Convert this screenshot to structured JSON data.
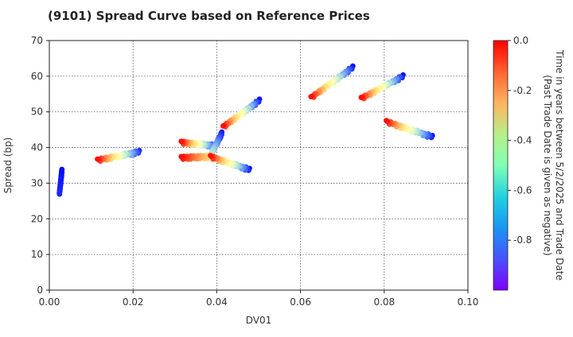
{
  "chart_data": {
    "type": "scatter",
    "title": "(9101)   Spread Curve based on Reference Prices",
    "xlabel": "DV01",
    "ylabel": "Spread (bp)",
    "xlim": [
      0.0,
      0.1
    ],
    "ylim": [
      0,
      70
    ],
    "x_ticks": [
      "0.00",
      "0.02",
      "0.04",
      "0.06",
      "0.08",
      "0.10"
    ],
    "y_ticks": [
      "0",
      "10",
      "20",
      "30",
      "40",
      "50",
      "60",
      "70"
    ],
    "grid": true,
    "colorbar": {
      "label_line1": "Time in years between 5/2/2025 and Trade Date",
      "label_line2": "(Past Trade Date is given as negative)",
      "range": [
        -1.0,
        0.0
      ],
      "ticks": [
        "0.0",
        "-0.2",
        "-0.4",
        "-0.6",
        "-0.8"
      ],
      "colormap": "rainbow"
    },
    "clusters": [
      {
        "x_start": 0.0024,
        "y_start": 27.0,
        "x_end": 0.003,
        "y_end": 33.5,
        "t_start": -0.95,
        "t_end": -0.99
      },
      {
        "x_start": 0.0115,
        "y_start": 36.5,
        "x_end": 0.0215,
        "y_end": 38.8,
        "t_start": -0.02,
        "t_end": -0.95
      },
      {
        "x_start": 0.0315,
        "y_start": 41.5,
        "x_end": 0.0395,
        "y_end": 40.5,
        "t_start": -0.02,
        "t_end": -0.95
      },
      {
        "x_start": 0.0315,
        "y_start": 37.2,
        "x_end": 0.0385,
        "y_end": 37.5,
        "t_start": -0.02,
        "t_end": -0.35
      },
      {
        "x_start": 0.0385,
        "y_start": 37.5,
        "x_end": 0.0478,
        "y_end": 33.8,
        "t_start": -0.02,
        "t_end": -0.98
      },
      {
        "x_start": 0.0388,
        "y_start": 38.5,
        "x_end": 0.0412,
        "y_end": 44.0,
        "t_start": -0.65,
        "t_end": -0.98
      },
      {
        "x_start": 0.0415,
        "y_start": 45.8,
        "x_end": 0.0502,
        "y_end": 53.2,
        "t_start": -0.02,
        "t_end": -0.98
      },
      {
        "x_start": 0.0625,
        "y_start": 54.0,
        "x_end": 0.0725,
        "y_end": 62.5,
        "t_start": -0.02,
        "t_end": -0.98
      },
      {
        "x_start": 0.0745,
        "y_start": 53.8,
        "x_end": 0.0845,
        "y_end": 60.0,
        "t_start": -0.02,
        "t_end": -0.98
      },
      {
        "x_start": 0.0805,
        "y_start": 47.3,
        "x_end": 0.0915,
        "y_end": 43.0,
        "t_start": -0.02,
        "t_end": -0.98
      }
    ]
  }
}
